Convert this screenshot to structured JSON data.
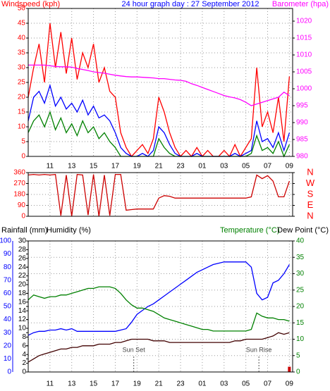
{
  "chart_data": [
    {
      "type": "line",
      "title": "24 hour graph day : 27 September 2012",
      "y_label": "Windspeed (kph)",
      "y2_label": "Barometer (hpa)",
      "grid": true,
      "grid_axis": "y",
      "axis_colors": {
        "y": "#ff0000",
        "y2": "#ff00ff"
      },
      "xlim": [
        9,
        33.3
      ],
      "xticks": [
        11,
        13,
        15,
        17,
        19,
        21,
        23,
        {
          "value": 25,
          "label": "01"
        },
        {
          "value": 27,
          "label": "03"
        },
        {
          "value": 29,
          "label": "05"
        },
        {
          "value": 31,
          "label": "07"
        },
        {
          "value": 33,
          "label": "09"
        }
      ],
      "ylim": [
        0,
        50
      ],
      "yticks": [
        0,
        5,
        10,
        15,
        20,
        25,
        30,
        35,
        40,
        45,
        50
      ],
      "y2lim": [
        980,
        1023.75
      ],
      "y2ticks": [
        980,
        985,
        990,
        995,
        1000,
        1005,
        1010,
        1015,
        1020
      ],
      "x": [
        9,
        9.5,
        10,
        10.5,
        11,
        11.5,
        12,
        12.5,
        13,
        13.5,
        14,
        14.5,
        15,
        15.5,
        16,
        16.5,
        17,
        17.5,
        18,
        18.5,
        19,
        19.5,
        20,
        20.5,
        21,
        21.5,
        22,
        22.5,
        23,
        23.5,
        24,
        24.5,
        25,
        25.5,
        26,
        26.5,
        27,
        27.5,
        28,
        28.5,
        29,
        29.5,
        30,
        30.5,
        31,
        31.5,
        32,
        32.5,
        33
      ],
      "series": [
        {
          "color": "#ff0000",
          "values": [
            20,
            30,
            38,
            25,
            45,
            30,
            42,
            28,
            40,
            26,
            35,
            30,
            38,
            25,
            30,
            22,
            20,
            8,
            3,
            0,
            2,
            4,
            1,
            6,
            20,
            15,
            8,
            3,
            0,
            2,
            0,
            3,
            0,
            2,
            0,
            0,
            2,
            0,
            4,
            0,
            3,
            6,
            30,
            10,
            15,
            8,
            20,
            5,
            27
          ]
        },
        {
          "color": "#0000ff",
          "values": [
            12,
            20,
            22,
            18,
            24,
            17,
            20,
            16,
            18,
            15,
            19,
            14,
            17,
            13,
            14,
            12,
            8,
            3,
            1,
            0,
            0,
            1,
            0,
            2,
            10,
            8,
            4,
            1,
            0,
            0,
            0,
            1,
            0,
            0,
            0,
            0,
            0,
            0,
            1,
            0,
            1,
            2,
            12,
            5,
            6,
            3,
            8,
            2,
            8
          ]
        },
        {
          "color": "#008000",
          "values": [
            8,
            12,
            14,
            10,
            15,
            9,
            13,
            8,
            11,
            7,
            12,
            8,
            10,
            6,
            8,
            5,
            3,
            0,
            0,
            0,
            0,
            0,
            0,
            0,
            6,
            3,
            1,
            0,
            0,
            0,
            0,
            0,
            0,
            0,
            0,
            0,
            0,
            0,
            0,
            0,
            0,
            1,
            7,
            2,
            3,
            1,
            5,
            0,
            4
          ]
        },
        {
          "color": "#ff00ff",
          "axis": "y2",
          "values": [
            1007,
            1007,
            1007,
            1007,
            1006.8,
            1006.6,
            1006.5,
            1006.5,
            1006.4,
            1006,
            1005.7,
            1005.4,
            1005,
            1004.8,
            1004.6,
            1004.3,
            1004,
            1003.8,
            1003.6,
            1003.5,
            1003.5,
            1003.4,
            1003.3,
            1003.2,
            1003,
            1003,
            1002.8,
            1002.6,
            1002.5,
            1002.2,
            1001.5,
            1001,
            1000.4,
            999.8,
            999.2,
            998.6,
            998,
            997.6,
            997.3,
            996.8,
            996,
            995,
            995.5,
            996,
            996.5,
            997,
            997.5,
            999,
            998
          ]
        }
      ]
    },
    {
      "type": "line",
      "grid": true,
      "grid_axis": "y",
      "axis_colors": {
        "y": "#ff0000",
        "y2": "#ff0000"
      },
      "xlim": [
        9,
        33.3
      ],
      "xticks": [
        11,
        13,
        15,
        17,
        19,
        21,
        23,
        25,
        27,
        29,
        31,
        33
      ],
      "ylim": [
        0,
        360
      ],
      "yticks": [
        0,
        90,
        180,
        270,
        360
      ],
      "y2lim": [
        0,
        360
      ],
      "y2ticks": [
        {
          "value": 0,
          "label": "N"
        },
        {
          "value": 90,
          "label": "E"
        },
        {
          "value": 180,
          "label": "S"
        },
        {
          "value": 270,
          "label": "W"
        },
        {
          "value": 360,
          "label": "N"
        }
      ],
      "x": [
        9,
        9.5,
        10,
        10.5,
        11,
        11.5,
        12,
        12.5,
        13,
        13.5,
        14,
        14.5,
        15,
        15.5,
        16,
        16.5,
        17,
        17.5,
        18,
        18.5,
        19,
        19.5,
        20,
        20.5,
        21,
        21.5,
        22,
        22.5,
        23,
        23.5,
        24,
        24.5,
        25,
        25.5,
        26,
        26.5,
        27,
        27.5,
        28,
        28.5,
        29,
        29.5,
        30,
        30.5,
        31,
        31.5,
        32,
        32.5,
        33
      ],
      "series": [
        {
          "color": "#cc0000",
          "values": [
            340,
            345,
            340,
            345,
            340,
            345,
            5,
            340,
            0,
            345,
            340,
            10,
            345,
            0,
            340,
            5,
            345,
            345,
            50,
            55,
            60,
            60,
            60,
            60,
            150,
            170,
            165,
            150,
            150,
            150,
            150,
            150,
            150,
            150,
            150,
            150,
            150,
            150,
            150,
            150,
            150,
            160,
            340,
            310,
            335,
            290,
            160,
            160,
            290
          ]
        }
      ]
    },
    {
      "type": "line",
      "y_label": "Rainfall (mm)",
      "y3_label": "Humidity (%)",
      "y2_label": "Temperature (°C)",
      "y2b_label": "Dew Point (°C)",
      "grid": true,
      "grid_axis": "y2",
      "axis_colors": {
        "y": "#0000ff",
        "y3": "#000000",
        "y2": "#008000"
      },
      "xlim": [
        9,
        33.3
      ],
      "xticks": [
        11,
        13,
        15,
        17,
        19,
        21,
        23,
        {
          "value": 25,
          "label": "01"
        },
        {
          "value": 27,
          "label": "03"
        },
        {
          "value": 29,
          "label": "05"
        },
        {
          "value": 31,
          "label": "07"
        },
        {
          "value": 33,
          "label": "09"
        }
      ],
      "ylim": [
        0,
        100
      ],
      "yticks": [
        0,
        10,
        20,
        30,
        40,
        50,
        60,
        70,
        80,
        90,
        100
      ],
      "y3lim": [
        0,
        30
      ],
      "y3ticks": [
        0,
        2,
        4,
        6,
        8,
        10,
        12,
        14,
        16,
        18,
        20,
        22,
        24,
        26,
        28,
        30
      ],
      "y2lim": [
        0,
        40
      ],
      "y2ticks": [
        0,
        5,
        10,
        15,
        20,
        25,
        30,
        35,
        40
      ],
      "annotations": [
        {
          "text": "Sun Set",
          "x": 18.7
        },
        {
          "text": "Sun Rise",
          "x": 30.2
        }
      ],
      "x": [
        9,
        9.5,
        10,
        10.5,
        11,
        11.5,
        12,
        12.5,
        13,
        13.5,
        14,
        14.5,
        15,
        15.5,
        16,
        16.5,
        17,
        17.5,
        18,
        18.5,
        19,
        19.5,
        20,
        20.5,
        21,
        21.5,
        22,
        22.5,
        23,
        23.5,
        24,
        24.5,
        25,
        25.5,
        26,
        26.5,
        27,
        27.5,
        28,
        28.5,
        29,
        29.5,
        30,
        30.5,
        31,
        31.5,
        32,
        32.5,
        33
      ],
      "series": [
        {
          "color": "#0000ff",
          "values": [
            28,
            30,
            31,
            31,
            32,
            32,
            33,
            32,
            33,
            31,
            31,
            31,
            31,
            31,
            31,
            31,
            31,
            32,
            33,
            38,
            44,
            47,
            50,
            52,
            55,
            58,
            61,
            64,
            67,
            70,
            73,
            76,
            78,
            80,
            82,
            83,
            84,
            84,
            84,
            84,
            84,
            80,
            60,
            55,
            57,
            68,
            70,
            75,
            82
          ]
        },
        {
          "color": "#008000",
          "axis": "y2",
          "values": [
            22,
            23.5,
            23,
            22.5,
            23,
            23,
            23.5,
            23.5,
            24,
            24.5,
            25,
            25.5,
            25.5,
            26,
            26,
            26,
            25.5,
            24,
            22,
            20.5,
            19.5,
            19.5,
            19,
            18.5,
            17.5,
            16.5,
            16,
            15.5,
            15,
            14.5,
            14,
            13.5,
            13,
            13,
            12.5,
            12.5,
            12.5,
            12.5,
            12.5,
            12.5,
            12.5,
            13,
            18,
            17,
            16.5,
            16.5,
            16,
            16,
            15.5
          ]
        },
        {
          "color": "#400000",
          "axis": "y2",
          "values": [
            3,
            4,
            5,
            5.5,
            6,
            6.5,
            7,
            7,
            7.5,
            7.5,
            8,
            8,
            8,
            8.5,
            8.5,
            8.5,
            9,
            9,
            9.5,
            10,
            10,
            10,
            10,
            9.5,
            9.5,
            9.5,
            9,
            9,
            9,
            9,
            9,
            9,
            9,
            9,
            9,
            9,
            9,
            9,
            9.5,
            9.5,
            10,
            10,
            10,
            10,
            10.5,
            11,
            12,
            11.5,
            12
          ]
        },
        {
          "color": "#cc0000",
          "axis": "y3",
          "style": "bar",
          "values": [
            0,
            0,
            0,
            0,
            0,
            0,
            0,
            0,
            0,
            0,
            0,
            0,
            0,
            0,
            0,
            0,
            0,
            0,
            0,
            0,
            0,
            0,
            0,
            0,
            0,
            0,
            0,
            0,
            0,
            0,
            0,
            0,
            0,
            0,
            0,
            0,
            0,
            0,
            0,
            0,
            0,
            0,
            0,
            0,
            0,
            0,
            0,
            0,
            1.2
          ]
        }
      ]
    }
  ]
}
